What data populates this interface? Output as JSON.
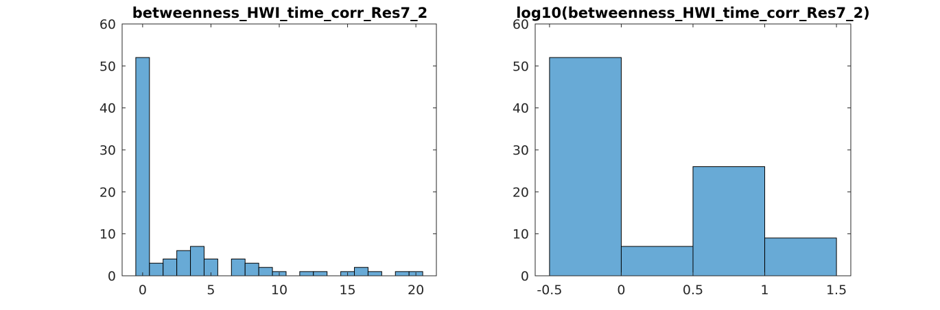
{
  "chart_data": [
    {
      "type": "bar",
      "title": "betweenness_HWI_time_corr_Res7_2",
      "xlim": [
        -1.5,
        21.5
      ],
      "ylim": [
        0,
        60
      ],
      "xticks": [
        0,
        5,
        10,
        15,
        20
      ],
      "xtick_labels": [
        "0",
        "5",
        "10",
        "15",
        "20"
      ],
      "yticks": [
        0,
        10,
        20,
        30,
        40,
        50,
        60
      ],
      "ytick_labels": [
        "0",
        "10",
        "20",
        "30",
        "40",
        "50",
        "60"
      ],
      "bin_width": 1,
      "bin_edges_start": -0.5,
      "values": [
        52,
        3,
        4,
        6,
        7,
        4,
        0,
        4,
        3,
        2,
        1,
        0,
        1,
        1,
        0,
        1,
        2,
        1,
        0,
        1,
        1
      ],
      "grid": false,
      "colors": {
        "bar": "#68aad6",
        "edge": "#000000"
      }
    },
    {
      "type": "bar",
      "title": "log10(betweenness_HWI_time_corr_Res7_2)",
      "xlim": [
        -0.6,
        1.6
      ],
      "ylim": [
        0,
        60
      ],
      "xticks": [
        -0.5,
        0,
        0.5,
        1,
        1.5
      ],
      "xtick_labels": [
        "-0.5",
        "0",
        "0.5",
        "1",
        "1.5"
      ],
      "yticks": [
        0,
        10,
        20,
        30,
        40,
        50,
        60
      ],
      "ytick_labels": [
        "0",
        "10",
        "20",
        "30",
        "40",
        "50",
        "60"
      ],
      "bin_width": 0.5,
      "bin_edges_start": -0.5,
      "values": [
        52,
        7,
        26,
        9
      ],
      "grid": false,
      "colors": {
        "bar": "#68aad6",
        "edge": "#000000"
      }
    }
  ]
}
